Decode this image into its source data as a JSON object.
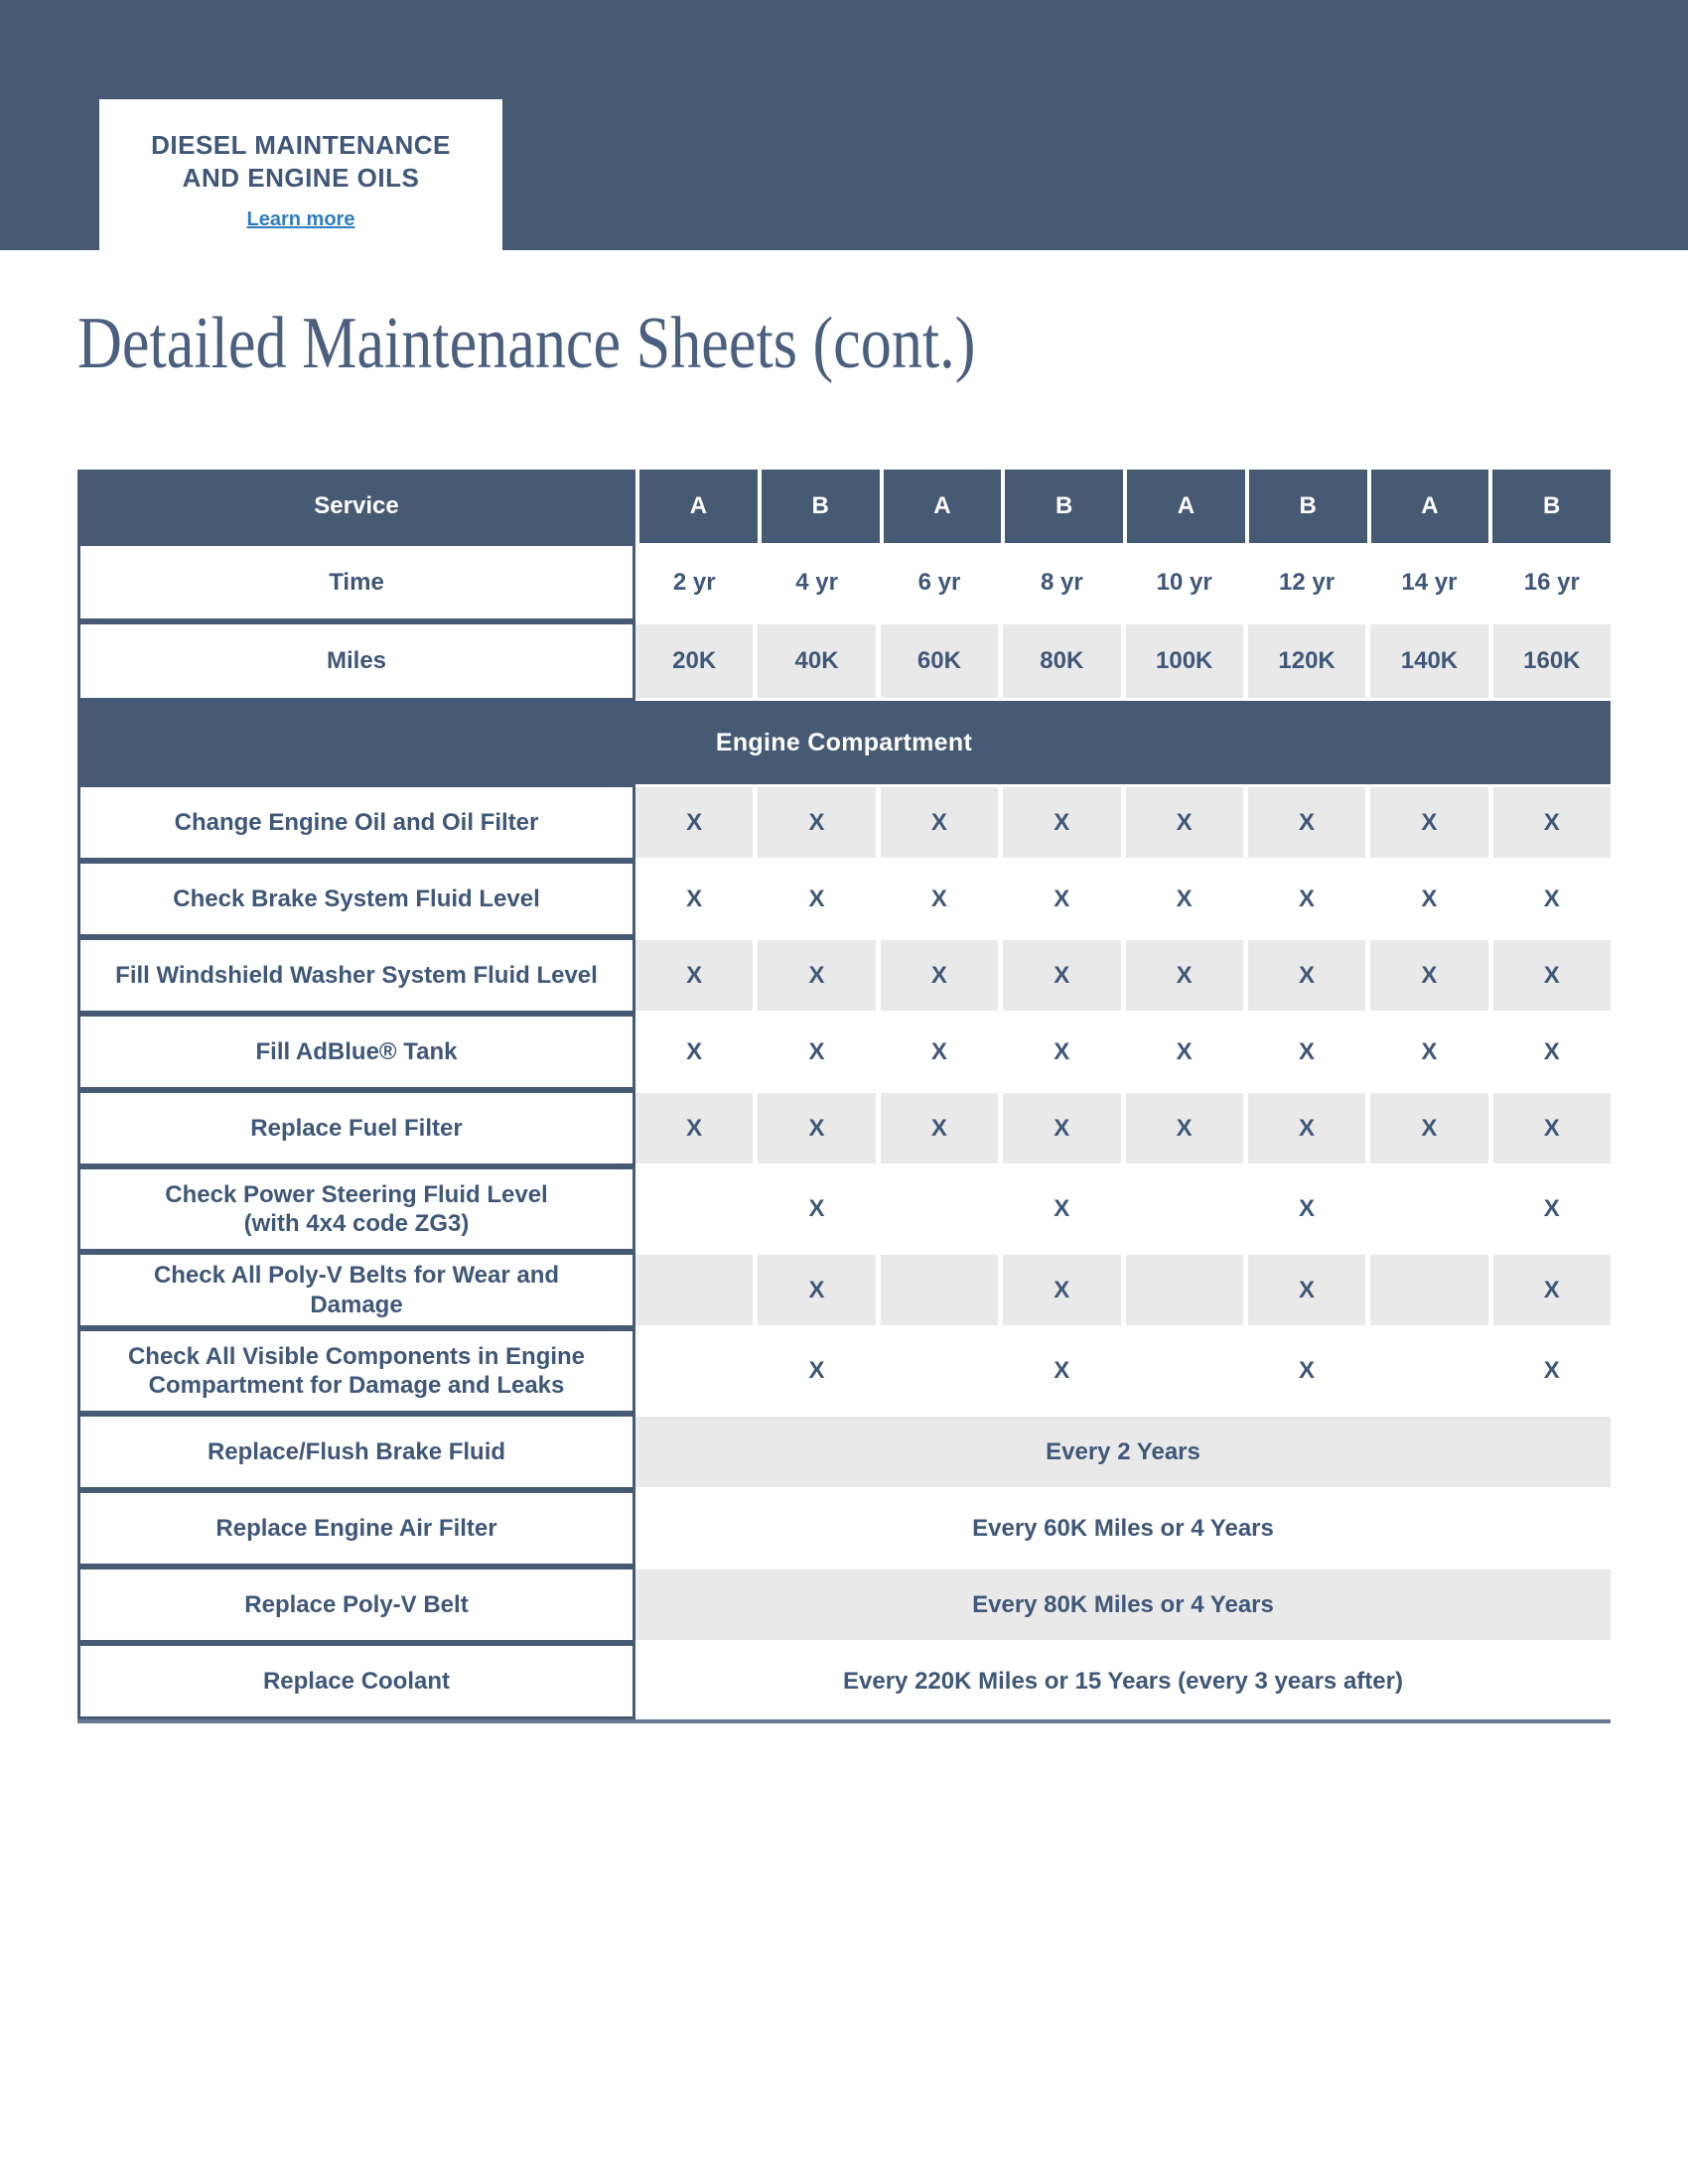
{
  "banner": {
    "title_line1": "DIESEL MAINTENANCE",
    "title_line2": "AND ENGINE OILS",
    "link_label": "Learn more"
  },
  "page": {
    "heading": "Detailed Maintenance Sheets (cont.)"
  },
  "colors": {
    "banner_slate": "#465a74",
    "text_slate": "#3f5778",
    "link_blue": "#2e7dc1",
    "shaded_cell": "#e9e9e9"
  },
  "table": {
    "service_header": "Service",
    "interval_headers": [
      "A",
      "B",
      "A",
      "B",
      "A",
      "B",
      "A",
      "B"
    ],
    "time_row": {
      "label": "Time",
      "values": [
        "2 yr",
        "4 yr",
        "6 yr",
        "8 yr",
        "10 yr",
        "12 yr",
        "14 yr",
        "16 yr"
      ]
    },
    "miles_row": {
      "label": "Miles",
      "values": [
        "20K",
        "40K",
        "60K",
        "80K",
        "100K",
        "120K",
        "140K",
        "160K"
      ]
    },
    "section_header": "Engine Compartment",
    "rows": [
      {
        "label": "Change Engine Oil and Oil Filter",
        "cells": [
          "X",
          "X",
          "X",
          "X",
          "X",
          "X",
          "X",
          "X"
        ],
        "shaded": true
      },
      {
        "label": "Check Brake System Fluid Level",
        "cells": [
          "X",
          "X",
          "X",
          "X",
          "X",
          "X",
          "X",
          "X"
        ],
        "shaded": false
      },
      {
        "label": "Fill Windshield Washer System Fluid Level",
        "cells": [
          "X",
          "X",
          "X",
          "X",
          "X",
          "X",
          "X",
          "X"
        ],
        "shaded": true
      },
      {
        "label": "Fill AdBlue® Tank",
        "cells": [
          "X",
          "X",
          "X",
          "X",
          "X",
          "X",
          "X",
          "X"
        ],
        "shaded": false
      },
      {
        "label": "Replace Fuel Filter",
        "cells": [
          "X",
          "X",
          "X",
          "X",
          "X",
          "X",
          "X",
          "X"
        ],
        "shaded": true
      },
      {
        "label": "Check Power Steering Fluid Level",
        "label_line2": "(with 4x4 code ZG3)",
        "cells": [
          "",
          "X",
          "",
          "X",
          "",
          "X",
          "",
          "X"
        ],
        "shaded": false
      },
      {
        "label": "Check All Poly-V Belts for Wear and Damage",
        "cells": [
          "",
          "X",
          "",
          "X",
          "",
          "X",
          "",
          "X"
        ],
        "shaded": true
      },
      {
        "label": "Check All Visible Components in Engine",
        "label_line2": "Compartment for Damage and Leaks",
        "cells": [
          "",
          "X",
          "",
          "X",
          "",
          "X",
          "",
          "X"
        ],
        "shaded": false
      },
      {
        "label": "Replace/Flush Brake Fluid",
        "span_text": "Every 2 Years",
        "shaded": true
      },
      {
        "label": "Replace Engine Air Filter",
        "span_text": "Every 60K Miles or 4 Years",
        "shaded": false
      },
      {
        "label": "Replace Poly-V Belt",
        "span_text": "Every 80K Miles or 4 Years",
        "shaded": true
      },
      {
        "label": "Replace Coolant",
        "span_text": "Every 220K Miles or 15 Years (every 3 years after)",
        "shaded": false
      }
    ]
  }
}
